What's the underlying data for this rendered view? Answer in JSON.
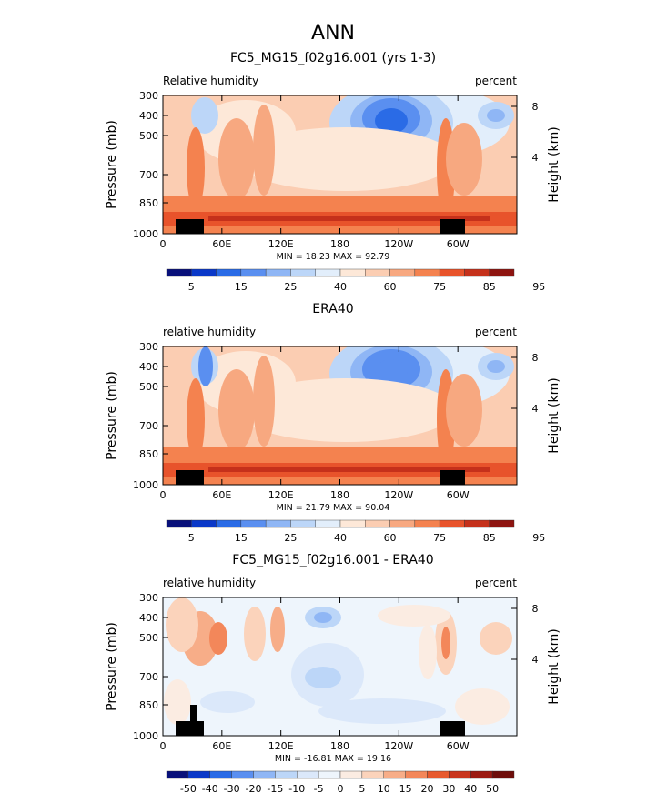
{
  "page_title": "ANN",
  "colors": {
    "positive_scale": [
      "#08107a",
      "#0a38c8",
      "#2a6be6",
      "#5a8ff0",
      "#8fb6f5",
      "#bcd6f8",
      "#e2eefb",
      "#fde8d8",
      "#fbcdb2",
      "#f7a880",
      "#f4824f",
      "#e8532b",
      "#c5311b",
      "#8e1410"
    ],
    "diff_scale": [
      "#08107a",
      "#0a38c8",
      "#2a6be6",
      "#5a8ff0",
      "#8fb6f5",
      "#bcd6f8",
      "#dbe8fa",
      "#eef5fc",
      "#fbece2",
      "#fbd3bb",
      "#f7ad88",
      "#f3875a",
      "#e75a2f",
      "#c9351d",
      "#9c1a12",
      "#6e0d0a"
    ]
  },
  "chart_data": [
    {
      "type": "heatmap",
      "title": "FC5_MG15_f02g16.001 (yrs 1-3)",
      "left_label": "Relative humidity",
      "right_label": "percent",
      "ylabel": "Pressure (mb)",
      "y2label": "Height (km)",
      "yticks": [
        "300",
        "400",
        "500",
        "700",
        "850",
        "1000"
      ],
      "y2ticks": [
        "8",
        "4"
      ],
      "xticks": [
        "0",
        "60E",
        "120E",
        "180",
        "120W",
        "60W"
      ],
      "stats": "MIN =   18.23   MAX =   92.79",
      "colorbar_labels": [
        "5",
        "15",
        "25",
        "40",
        "60",
        "75",
        "85",
        "95"
      ],
      "variant": "model"
    },
    {
      "type": "heatmap",
      "title": "ERA40",
      "left_label": "relative humidity",
      "right_label": "percent",
      "ylabel": "Pressure (mb)",
      "y2label": "Height (km)",
      "yticks": [
        "300",
        "400",
        "500",
        "700",
        "850",
        "1000"
      ],
      "y2ticks": [
        "8",
        "4"
      ],
      "xticks": [
        "0",
        "60E",
        "120E",
        "180",
        "120W",
        "60W"
      ],
      "stats": "MIN =   21.79   MAX =   90.04",
      "colorbar_labels": [
        "5",
        "15",
        "25",
        "40",
        "60",
        "75",
        "85",
        "95"
      ],
      "variant": "obs"
    },
    {
      "type": "heatmap",
      "title": "FC5_MG15_f02g16.001 - ERA40",
      "left_label": "relative humidity",
      "right_label": "percent",
      "ylabel": "Pressure (mb)",
      "y2label": "Height (km)",
      "yticks": [
        "300",
        "400",
        "500",
        "700",
        "850",
        "1000"
      ],
      "y2ticks": [
        "8",
        "4"
      ],
      "xticks": [
        "0",
        "60E",
        "120E",
        "180",
        "120W",
        "60W"
      ],
      "stats": "MIN = -16.81   MAX =  19.16",
      "colorbar_labels": [
        "-50",
        "-40",
        "-30",
        "-20",
        "-15",
        "-10",
        "-5",
        "0",
        "5",
        "10",
        "15",
        "20",
        "30",
        "40",
        "50"
      ],
      "variant": "diff"
    }
  ]
}
